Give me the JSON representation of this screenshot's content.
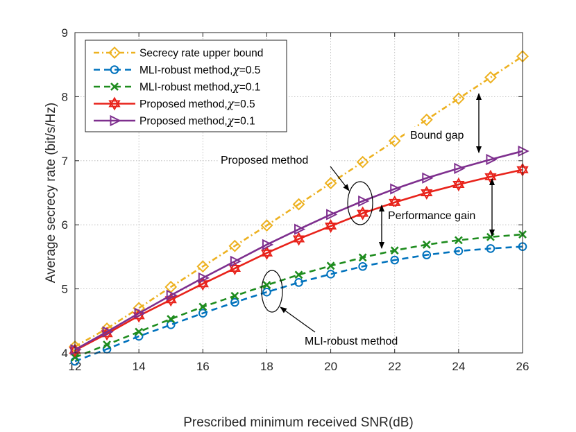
{
  "chart_data": {
    "type": "line",
    "xlabel": "Prescribed minimum received SNR(dB)",
    "ylabel": "Average secrecy rate (bit/s/Hz)",
    "xlim": [
      12,
      26
    ],
    "ylim": [
      4,
      9
    ],
    "xticks": [
      12,
      14,
      16,
      18,
      20,
      22,
      24,
      26
    ],
    "yticks": [
      4,
      5,
      6,
      7,
      8,
      9
    ],
    "grid": true,
    "legend_position": "top-left",
    "x": [
      12,
      13,
      14,
      15,
      16,
      17,
      18,
      19,
      20,
      21,
      22,
      23,
      24,
      25,
      26
    ],
    "series": [
      {
        "name": "Secrecy rate upper bound",
        "label_main": "Secrecy rate upper bound",
        "label_chi": "",
        "color": "#EDB120",
        "dash": "8,4,2,4",
        "marker": "diamond",
        "values": [
          4.1,
          4.38,
          4.7,
          5.03,
          5.35,
          5.67,
          5.99,
          6.32,
          6.65,
          6.98,
          7.31,
          7.64,
          7.97,
          8.3,
          8.63
        ]
      },
      {
        "name": "MLI-robust method,χ=0.5",
        "label_main": "MLI-robust method,",
        "label_chi": "=0.5",
        "color": "#0072BD",
        "dash": "9,6",
        "marker": "circle",
        "values": [
          3.87,
          4.06,
          4.26,
          4.44,
          4.62,
          4.79,
          4.95,
          5.1,
          5.23,
          5.35,
          5.45,
          5.53,
          5.59,
          5.63,
          5.66
        ]
      },
      {
        "name": "MLI-robust method,χ=0.1",
        "label_main": "MLI-robust method,",
        "label_chi": "=0.1",
        "color": "#1E8C1E",
        "dash": "9,6",
        "marker": "x",
        "values": [
          3.93,
          4.13,
          4.33,
          4.53,
          4.72,
          4.89,
          5.06,
          5.22,
          5.36,
          5.49,
          5.6,
          5.69,
          5.76,
          5.81,
          5.85
        ]
      },
      {
        "name": "Proposed method,χ=0.5",
        "label_main": "Proposed method,",
        "label_chi": "=0.5",
        "color": "#E8221A",
        "dash": "",
        "marker": "hexagram",
        "values": [
          4.04,
          4.3,
          4.58,
          4.83,
          5.08,
          5.32,
          5.56,
          5.78,
          5.98,
          6.18,
          6.35,
          6.5,
          6.63,
          6.75,
          6.86
        ]
      },
      {
        "name": "Proposed method,χ=0.1",
        "label_main": "Proposed method,",
        "label_chi": "=0.1",
        "color": "#7E2F8E",
        "dash": "",
        "marker": "triangle-right",
        "values": [
          4.05,
          4.33,
          4.62,
          4.9,
          5.17,
          5.43,
          5.69,
          5.93,
          6.16,
          6.37,
          6.56,
          6.73,
          6.88,
          7.02,
          7.15
        ]
      }
    ],
    "annotations": {
      "bound_gap": "Bound gap",
      "proposed_method": "Proposed method",
      "performance_gain": "Performance gain",
      "mli_robust_method": "MLI-robust method"
    },
    "chi_symbol": "χ"
  }
}
